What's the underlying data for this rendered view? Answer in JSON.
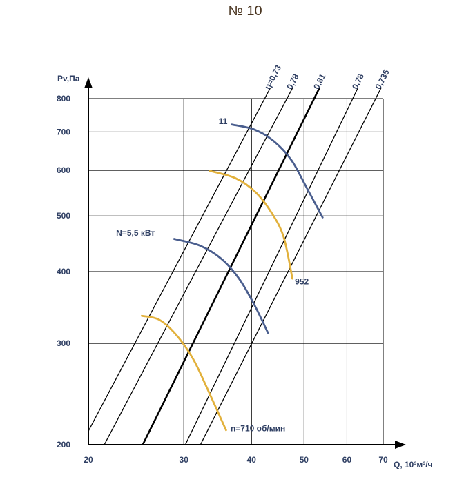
{
  "chart_data": {
    "type": "line",
    "title": "№ 10",
    "xlabel": "Q, 10³м³/ч",
    "ylabel": "Pv,Па",
    "x_scale": "log",
    "y_scale": "log",
    "xlim": [
      20,
      70
    ],
    "ylim": [
      200,
      800
    ],
    "x_ticks": [
      20,
      30,
      40,
      50,
      60,
      70
    ],
    "y_ticks": [
      200,
      300,
      400,
      500,
      600,
      700,
      800
    ],
    "grid": true,
    "efficiency_lines": [
      {
        "label": "η=0,73",
        "bold": false,
        "points": [
          [
            20.2,
            215
          ],
          [
            42.3,
            800
          ]
        ]
      },
      {
        "label": "0,78",
        "bold": false,
        "points": [
          [
            21.4,
            200
          ],
          [
            46.5,
            800
          ]
        ]
      },
      {
        "label": "0,81",
        "bold": true,
        "points": [
          [
            25.2,
            200
          ],
          [
            52.2,
            800
          ]
        ]
      },
      {
        "label": "0,78",
        "bold": false,
        "points": [
          [
            30.2,
            200
          ],
          [
            61.5,
            800
          ]
        ]
      },
      {
        "label": "0,735",
        "bold": false,
        "points": [
          [
            32.2,
            200
          ],
          [
            67.8,
            800
          ]
        ]
      }
    ],
    "series": [
      {
        "color": "#e2b13c",
        "values": [
          [
            25.1,
            335
          ],
          [
            27.0,
            330
          ],
          [
            29.0,
            311
          ],
          [
            31.2,
            282
          ],
          [
            33.3,
            248
          ],
          [
            35.9,
            212
          ]
        ]
      },
      {
        "color": "#4a5e8e",
        "values": [
          [
            28.8,
            456
          ],
          [
            32.1,
            444
          ],
          [
            35.2,
            421
          ],
          [
            38.0,
            388
          ],
          [
            40.5,
            350
          ],
          [
            42.9,
            313
          ]
        ]
      },
      {
        "color": "#e2b13c",
        "values": [
          [
            33.5,
            599
          ],
          [
            37.3,
            582
          ],
          [
            40.6,
            551
          ],
          [
            43.4,
            509
          ],
          [
            45.8,
            461
          ],
          [
            47.6,
            389
          ]
        ]
      },
      {
        "color": "#4a5e8e",
        "values": [
          [
            36.8,
            721
          ],
          [
            40.6,
            706
          ],
          [
            44.1,
            673
          ],
          [
            47.4,
            625
          ],
          [
            50.2,
            567
          ],
          [
            54.1,
            497
          ]
        ]
      }
    ],
    "annotations": [
      {
        "text": "11",
        "x": 34.8,
        "y": 722
      },
      {
        "text": "952",
        "x": 48.1,
        "y": 380
      },
      {
        "text": "N=5,5 кВт",
        "x": 22.5,
        "y": 462
      },
      {
        "text": "n=710 об/мин",
        "x": 36.6,
        "y": 211
      }
    ]
  }
}
